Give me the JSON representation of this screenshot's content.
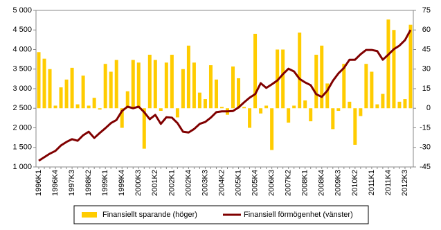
{
  "chart_data": {
    "type": "bar_line",
    "categories": [
      "1996K1",
      null,
      null,
      "1996K4",
      null,
      null,
      "1997K3",
      null,
      null,
      "1998K2",
      null,
      null,
      "1999K1",
      null,
      null,
      "1999K4",
      null,
      null,
      "2000K3",
      null,
      null,
      "2001K2",
      null,
      null,
      "2002K1",
      null,
      null,
      "2002K4",
      null,
      null,
      "2003K3",
      null,
      null,
      "2004K2",
      null,
      null,
      "2005K1",
      null,
      null,
      "2005K4",
      null,
      null,
      "2006K3",
      null,
      null,
      "2007K2",
      null,
      null,
      "2008K1",
      null,
      null,
      "2008K4",
      null,
      null,
      "2009K3",
      null,
      null,
      "2010K2",
      null,
      null,
      "2011K1",
      null,
      null,
      "2011K4",
      null,
      null,
      "2012K3",
      null
    ],
    "series": [
      {
        "name": "Finansiellt sparande (höger)",
        "type": "bar",
        "axis": "y2",
        "color": "#ffcc00",
        "values": [
          43,
          38,
          30,
          2,
          16,
          22,
          31,
          3,
          25,
          2,
          8,
          -1,
          34,
          28,
          37,
          -15,
          13,
          37,
          35,
          -31,
          41,
          37,
          -2,
          35,
          41,
          -7,
          30,
          48,
          35,
          12,
          7,
          33,
          22,
          1,
          -5,
          32,
          23,
          1,
          -15,
          57,
          -4,
          2,
          -32,
          45,
          45,
          -11,
          2,
          58,
          6,
          -10,
          41,
          48,
          19,
          -16,
          -2,
          34,
          5,
          -28,
          -6,
          34,
          28,
          3,
          11,
          68,
          60,
          5,
          7,
          64
        ]
      },
      {
        "name": "Finansiell förmögenhet (vänster)",
        "type": "line",
        "axis": "y",
        "color": "#800000",
        "values": [
          1160,
          1250,
          1340,
          1410,
          1550,
          1640,
          1710,
          1670,
          1810,
          1900,
          1740,
          1870,
          1990,
          2120,
          2200,
          2430,
          2540,
          2500,
          2540,
          2400,
          2220,
          2330,
          2100,
          2270,
          2260,
          2120,
          1900,
          1880,
          1970,
          2100,
          2150,
          2260,
          2400,
          2420,
          2420,
          2430,
          2520,
          2650,
          2770,
          2860,
          3140,
          3020,
          3110,
          3210,
          3370,
          3510,
          3440,
          3250,
          3160,
          3090,
          2860,
          2790,
          2950,
          3200,
          3390,
          3530,
          3740,
          3740,
          3880,
          3990,
          3990,
          3960,
          3740,
          3870,
          4010,
          4100,
          4240,
          4500
        ]
      }
    ],
    "ylim": [
      1000,
      5000
    ],
    "yticks": [
      {
        "value": 1000,
        "label": "1 000"
      },
      {
        "value": 1500,
        "label": "1 500"
      },
      {
        "value": 2000,
        "label": "2 000"
      },
      {
        "value": 2500,
        "label": "2 500"
      },
      {
        "value": 3000,
        "label": "3 000"
      },
      {
        "value": 3500,
        "label": "3 500"
      },
      {
        "value": 4000,
        "label": "4 000"
      },
      {
        "value": 4500,
        "label": "4 500"
      },
      {
        "value": 5000,
        "label": "5 000"
      }
    ],
    "y2lim": [
      -45,
      75
    ],
    "y2ticks": [
      -45,
      -30,
      -15,
      0,
      15,
      30,
      45,
      60,
      75
    ],
    "legend": "bottom"
  }
}
